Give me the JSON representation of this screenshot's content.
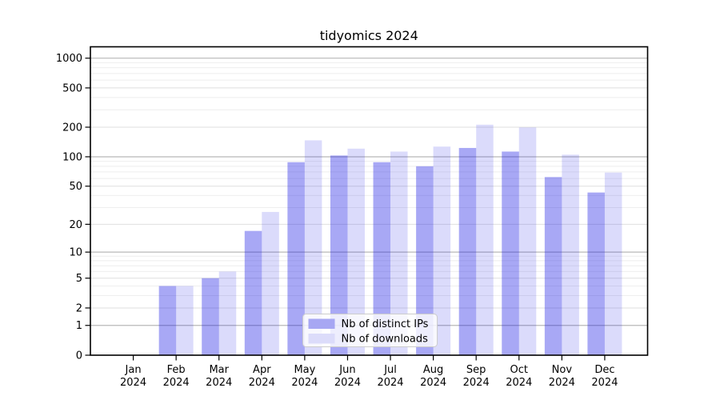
{
  "page": {
    "background": "#ffffff"
  },
  "chart_data": {
    "type": "bar",
    "title": "tidyomics 2024",
    "categories": [
      "Jan 2024",
      "Feb 2024",
      "Mar 2024",
      "Apr 2024",
      "May 2024",
      "Jun 2024",
      "Jul 2024",
      "Aug 2024",
      "Sep 2024",
      "Oct 2024",
      "Nov 2024",
      "Dec 2024"
    ],
    "series": [
      {
        "name": "Nb of distinct IPs",
        "swatch_color": "#a7a7f3",
        "bar_fill": "rgba(30,30,228,0.39)",
        "values": [
          0,
          4,
          5,
          17,
          88,
          103,
          88,
          80,
          123,
          113,
          62,
          43
        ]
      },
      {
        "name": "Nb of downloads",
        "swatch_color": "#dcdcfa",
        "bar_fill": "rgba(30,30,228,0.16)",
        "values": [
          0,
          4,
          6,
          27,
          147,
          121,
          113,
          127,
          212,
          199,
          105,
          69
        ]
      }
    ],
    "yticks": [
      0,
      1,
      2,
      5,
      10,
      20,
      50,
      100,
      200,
      500,
      1000
    ],
    "ylim": [
      0,
      1000
    ],
    "yscale": "log10(value+1)",
    "grid": "horizontal",
    "legend_position": "inside-bottom-center",
    "colors": {
      "decade_gridline": "#b8b8b8",
      "labeled_gridline": "#dfdfdf",
      "minor_gridline": "#eeeeee",
      "frame": "#000000",
      "legend_border": "#cccccc",
      "legend_background": "rgba(255,255,255,0.8)"
    }
  }
}
